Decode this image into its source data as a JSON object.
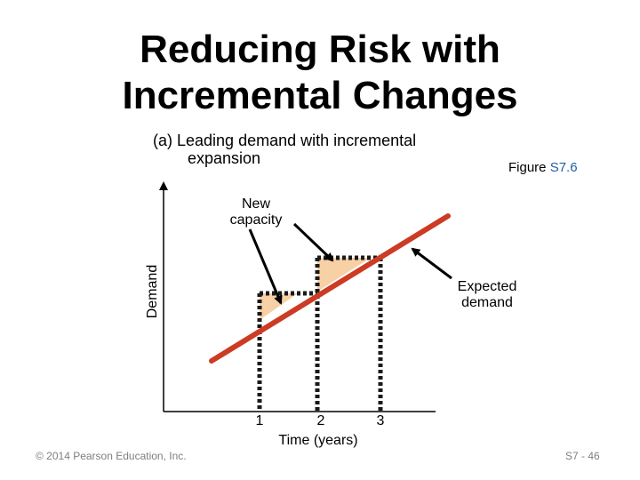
{
  "title": {
    "line1": "Reducing Risk with",
    "line2": "Incremental Changes"
  },
  "subtitle": {
    "line1": "(a)  Leading demand with incremental",
    "line2": "expansion"
  },
  "figure_ref": {
    "prefix": "Figure ",
    "number": "S7.6"
  },
  "diagram": {
    "y_axis_label": "Demand",
    "x_axis_label": "Time (years)",
    "x_ticks": [
      "1",
      "2",
      "3"
    ],
    "callout_new_capacity": {
      "line1": "New",
      "line2": "capacity"
    },
    "callout_expected_demand": {
      "line1": "Expected",
      "line2": "demand"
    },
    "colors": {
      "demand_line": "#cc3b24",
      "capacity_fill": "#f7d0a6",
      "dashed_outline": "#1a1a1a"
    }
  },
  "footer": {
    "copyright": "© 2014 Pearson Education, Inc.",
    "page": "S7 - 46"
  }
}
